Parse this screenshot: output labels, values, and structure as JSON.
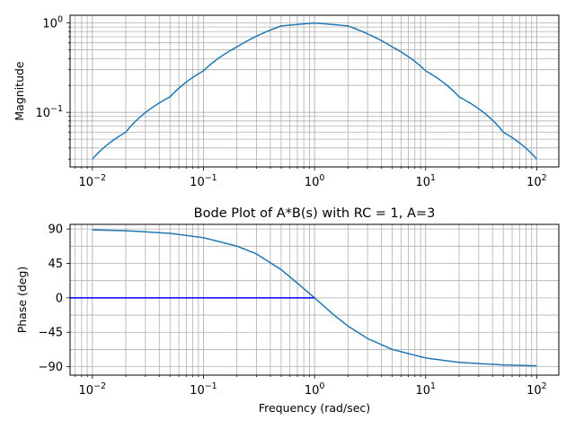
{
  "chart_data": [
    {
      "type": "line",
      "panel": "magnitude",
      "title": "",
      "xlabel": "",
      "ylabel": "Magnitude",
      "xscale": "log",
      "yscale": "log",
      "xlim": [
        0.0063,
        158
      ],
      "ylim": [
        0.0245,
        1.22
      ],
      "xtick_labels": [
        {
          "base": "10",
          "exp": "−2"
        },
        {
          "base": "10",
          "exp": "−1"
        },
        {
          "base": "10",
          "exp": "0"
        },
        {
          "base": "10",
          "exp": "1"
        },
        {
          "base": "10",
          "exp": "2"
        }
      ],
      "ytick_labels": [
        {
          "base": "10",
          "exp": "−1"
        },
        {
          "base": "10",
          "exp": "0"
        }
      ],
      "grid": "major and minor",
      "series": [
        {
          "color": "#1f77b4",
          "x": [
            0.01,
            0.02,
            0.05,
            0.1,
            0.2,
            0.5,
            1,
            2,
            5,
            10,
            20,
            50,
            100
          ],
          "y": [
            0.03,
            0.06,
            0.149,
            0.291,
            0.54,
            0.927,
            1.0,
            0.927,
            0.54,
            0.291,
            0.149,
            0.06,
            0.03
          ]
        }
      ]
    },
    {
      "type": "line",
      "panel": "phase",
      "title": "Bode Plot of A*B(s) with RC = 1, A=3",
      "xlabel": "Frequency (rad/sec)",
      "ylabel": "Phase (deg)",
      "xscale": "log",
      "xlim": [
        0.0063,
        158
      ],
      "ylim": [
        -101,
        96
      ],
      "xtick_labels": [
        {
          "base": "10",
          "exp": "−2"
        },
        {
          "base": "10",
          "exp": "−1"
        },
        {
          "base": "10",
          "exp": "0"
        },
        {
          "base": "10",
          "exp": "1"
        },
        {
          "base": "10",
          "exp": "2"
        }
      ],
      "ytick_labels": [
        "90",
        "45",
        "0",
        "−45",
        "−90"
      ],
      "yticks": [
        90,
        45,
        0,
        -45,
        -90
      ],
      "grid": "major and minor",
      "series": [
        {
          "color": "#1f77b4",
          "x": [
            0.01,
            0.02,
            0.05,
            0.1,
            0.2,
            0.3,
            0.5,
            0.7,
            1,
            1.5,
            2,
            3,
            5,
            10,
            20,
            50,
            100
          ],
          "y": [
            88.8,
            87.7,
            84.3,
            78.6,
            67.6,
            57.4,
            36.9,
            19.2,
            0,
            -22.6,
            -36.9,
            -53.1,
            -67.4,
            -78.6,
            -84.3,
            -87.7,
            -88.8
          ]
        },
        {
          "color": "#0000ff",
          "x": [
            0.0063,
            1
          ],
          "y": [
            0,
            0
          ]
        }
      ]
    }
  ]
}
